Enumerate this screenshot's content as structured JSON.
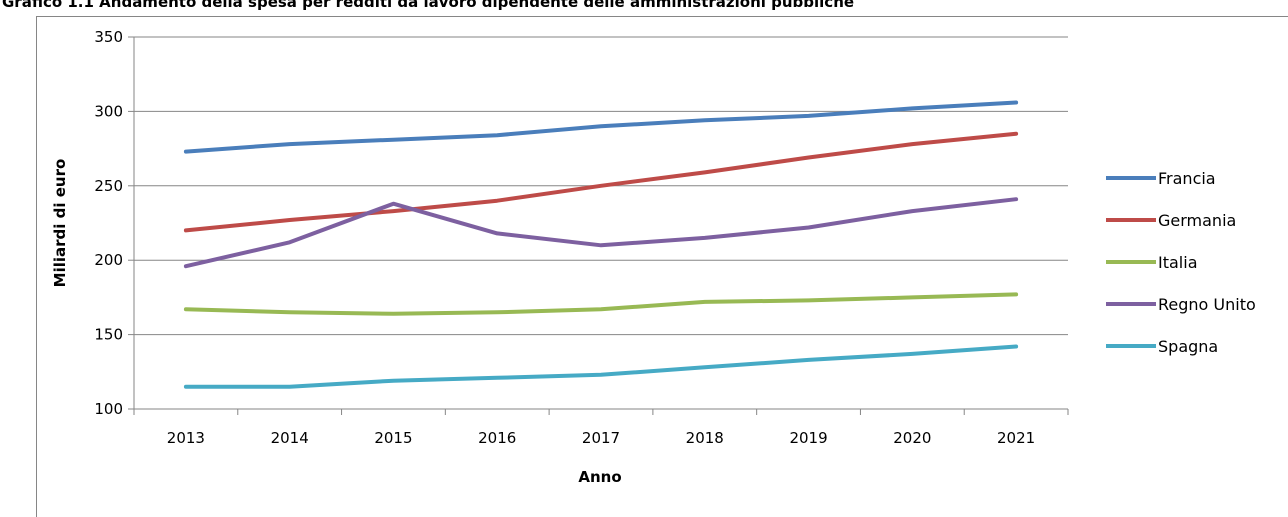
{
  "page": {
    "title": "Grafico 1.1 Andamento della spesa per redditi da lavoro dipendente delle amministrazioni pubbliche"
  },
  "chart_data": {
    "type": "line",
    "title": "",
    "xlabel": "Anno",
    "ylabel": "Miliardi di euro",
    "categories": [
      "2013",
      "2014",
      "2015",
      "2016",
      "2017",
      "2018",
      "2019",
      "2020",
      "2021"
    ],
    "ylim": [
      100,
      350
    ],
    "yticks": [
      "100",
      "150",
      "200",
      "250",
      "300",
      "350"
    ],
    "grid": true,
    "legend_position": "right",
    "series": [
      {
        "name": "Francia",
        "color": "#4a7ebb",
        "values": [
          273,
          278,
          281,
          284,
          290,
          294,
          297,
          302,
          306
        ]
      },
      {
        "name": "Germania",
        "color": "#be4b48",
        "values": [
          220,
          227,
          233,
          240,
          250,
          259,
          269,
          278,
          285
        ]
      },
      {
        "name": "Italia",
        "color": "#98b954",
        "values": [
          167,
          165,
          164,
          165,
          167,
          172,
          173,
          175,
          177
        ]
      },
      {
        "name": "Regno Unito",
        "color": "#7d60a0",
        "values": [
          196,
          212,
          238,
          218,
          210,
          215,
          222,
          233,
          241
        ]
      },
      {
        "name": "Spagna",
        "color": "#46aac5",
        "values": [
          115,
          115,
          119,
          121,
          123,
          128,
          133,
          137,
          142
        ]
      }
    ]
  }
}
